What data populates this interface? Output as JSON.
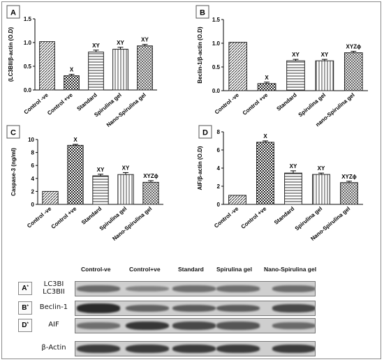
{
  "chart_data": [
    {
      "panel": "A",
      "type": "bar",
      "ylabel": "(LC3BII/β-actin (O.D)",
      "ylim": [
        0.0,
        1.5
      ],
      "yticks": [
        "0.0",
        "0.5",
        "1.0",
        "1.5"
      ],
      "categories": [
        "Control -ve",
        "Control +ve",
        "Standard",
        "Spirulina gel",
        "Nano-Spirulina  gel"
      ],
      "values": [
        1.02,
        0.3,
        0.8,
        0.86,
        0.93
      ],
      "errors": [
        0.0,
        0.03,
        0.04,
        0.04,
        0.03
      ],
      "annotations": [
        "",
        "X",
        "XY",
        "XY",
        "XY"
      ]
    },
    {
      "panel": "B",
      "type": "bar",
      "ylabel": "Beclin-1/β-actin (O.D)",
      "ylim": [
        0.0,
        1.5
      ],
      "yticks": [
        "0.0",
        "0.5",
        "1.0",
        "1.5"
      ],
      "categories": [
        "Control -ve",
        "Control +ve",
        "Standard",
        "Spirulina gel",
        "nano-Spirulina  gel"
      ],
      "values": [
        1.02,
        0.15,
        0.63,
        0.63,
        0.8
      ],
      "errors": [
        0.0,
        0.03,
        0.03,
        0.03,
        0.03
      ],
      "annotations": [
        "",
        "X",
        "XY",
        "XY",
        "XYZϕ"
      ]
    },
    {
      "panel": "C",
      "type": "bar",
      "ylabel": "Caspase-3 (ng/ml)",
      "ylim": [
        0,
        10
      ],
      "yticks": [
        "0",
        "2",
        "4",
        "6",
        "8",
        "10"
      ],
      "categories": [
        "Control -ve",
        "Control +ve",
        "Standard",
        "Spirulina gel",
        "Nano-Spirulina  gel"
      ],
      "values": [
        2.0,
        9.1,
        4.4,
        4.6,
        3.4
      ],
      "errors": [
        0.0,
        0.15,
        0.25,
        0.3,
        0.25
      ],
      "annotations": [
        "",
        "X",
        "XY",
        "XY",
        "XYZϕ"
      ]
    },
    {
      "panel": "D",
      "type": "bar",
      "ylabel": "AIF/β-actin (O.D)",
      "ylim": [
        0,
        8
      ],
      "yticks": [
        "0",
        "2",
        "4",
        "6",
        "8"
      ],
      "categories": [
        "Control -ve",
        "Control +ve",
        "Standard",
        "Spirulina gel",
        "Nano-Spirulina  gel"
      ],
      "values": [
        1.0,
        6.85,
        3.45,
        3.3,
        2.4
      ],
      "errors": [
        0.0,
        0.15,
        0.25,
        0.15,
        0.15
      ],
      "annotations": [
        "",
        "X",
        "XY",
        "XY",
        "XYZϕ"
      ]
    }
  ],
  "blot": {
    "headers": [
      "Control-ve",
      "Control+ve",
      "Standard",
      "Spirulina gel",
      "Nano-Spirulina gel"
    ],
    "rows": [
      {
        "tag": "A",
        "tag_sup": "*",
        "label_line1": "LC3BI",
        "label_line2": "LC3BII",
        "intensities": [
          0.45,
          0.25,
          0.4,
          0.4,
          0.42
        ]
      },
      {
        "tag": "B",
        "tag_sup": "*",
        "label_line1": "Beclin-1",
        "label_line2": "",
        "intensities": [
          0.95,
          0.5,
          0.55,
          0.55,
          0.7
        ]
      },
      {
        "tag": "D",
        "tag_sup": "*",
        "label_line1": "AIF",
        "label_line2": "",
        "intensities": [
          0.4,
          0.85,
          0.7,
          0.6,
          0.45
        ]
      },
      {
        "tag": "",
        "tag_sup": "",
        "label_line1": "β-Actin",
        "label_line2": "",
        "intensities": [
          0.8,
          0.8,
          0.8,
          0.8,
          0.8
        ]
      }
    ]
  },
  "colors": {
    "bar_fill_light": "#ffffff",
    "bar_stroke": "#222222",
    "blot_bg": "#cfcfcf",
    "band": "#1a1a1a"
  }
}
